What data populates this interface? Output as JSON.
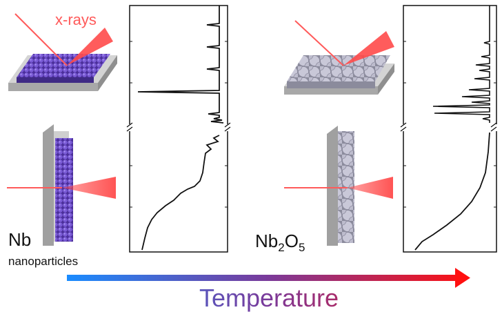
{
  "labels": {
    "xrays": "x-rays",
    "nb": "Nb",
    "nanoparticles": "nanoparticles",
    "nb2o5": {
      "parts": [
        "Nb",
        "2",
        "O",
        "5"
      ]
    },
    "temperature": "Temperature"
  }
}
